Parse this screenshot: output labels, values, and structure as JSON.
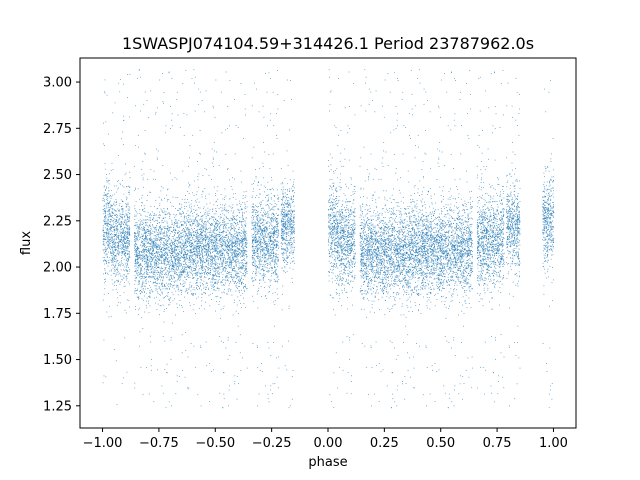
{
  "chart_data": {
    "type": "scatter",
    "title": "1SWASPJ074104.59+314426.1 Period 23787962.0s",
    "xlabel": "phase",
    "ylabel": "flux",
    "xlim": [
      -1.1,
      1.1
    ],
    "ylim": [
      1.13,
      3.13
    ],
    "xticks": [
      -1.0,
      -0.75,
      -0.5,
      -0.25,
      0.0,
      0.25,
      0.5,
      0.75,
      1.0
    ],
    "xtick_labels": [
      "−1.00",
      "−0.75",
      "−0.50",
      "−0.25",
      "0.00",
      "0.25",
      "0.50",
      "0.75",
      "1.00"
    ],
    "yticks": [
      1.25,
      1.5,
      1.75,
      2.0,
      2.25,
      2.5,
      2.75,
      3.0
    ],
    "ytick_labels": [
      "1.25",
      "1.50",
      "1.75",
      "2.00",
      "2.25",
      "2.50",
      "2.75",
      "3.00"
    ],
    "grid": false,
    "marker_color": "#1f77b4",
    "series": [
      {
        "name": "",
        "description_points": "dense cloud of point samples; phase-folded light curve repeated over [-1,0] and [0,1]",
        "clusters": [
          {
            "x_range": [
              -1.0,
              -0.96
            ],
            "y_center": 2.2,
            "y_spread": 0.13
          },
          {
            "x_range": [
              -0.96,
              -0.88
            ],
            "y_center": 2.15,
            "y_spread": 0.12
          },
          {
            "x_range": [
              -0.86,
              -0.62
            ],
            "y_center": 2.08,
            "y_spread": 0.12
          },
          {
            "x_range": [
              -0.62,
              -0.36
            ],
            "y_center": 2.1,
            "y_spread": 0.12
          },
          {
            "x_range": [
              -0.34,
              -0.22
            ],
            "y_center": 2.15,
            "y_spread": 0.12
          },
          {
            "x_range": [
              -0.21,
              -0.15
            ],
            "y_center": 2.22,
            "y_spread": 0.11
          },
          {
            "x_range": [
              0.0,
              0.04
            ],
            "y_center": 2.2,
            "y_spread": 0.13
          },
          {
            "x_range": [
              0.04,
              0.12
            ],
            "y_center": 2.15,
            "y_spread": 0.12
          },
          {
            "x_range": [
              0.14,
              0.38
            ],
            "y_center": 2.08,
            "y_spread": 0.12
          },
          {
            "x_range": [
              0.38,
              0.64
            ],
            "y_center": 2.1,
            "y_spread": 0.12
          },
          {
            "x_range": [
              0.66,
              0.78
            ],
            "y_center": 2.15,
            "y_spread": 0.12
          },
          {
            "x_range": [
              0.79,
              0.85
            ],
            "y_center": 2.22,
            "y_spread": 0.11
          },
          {
            "x_range": [
              0.95,
              1.0
            ],
            "y_center": 2.25,
            "y_spread": 0.12
          }
        ]
      }
    ]
  }
}
